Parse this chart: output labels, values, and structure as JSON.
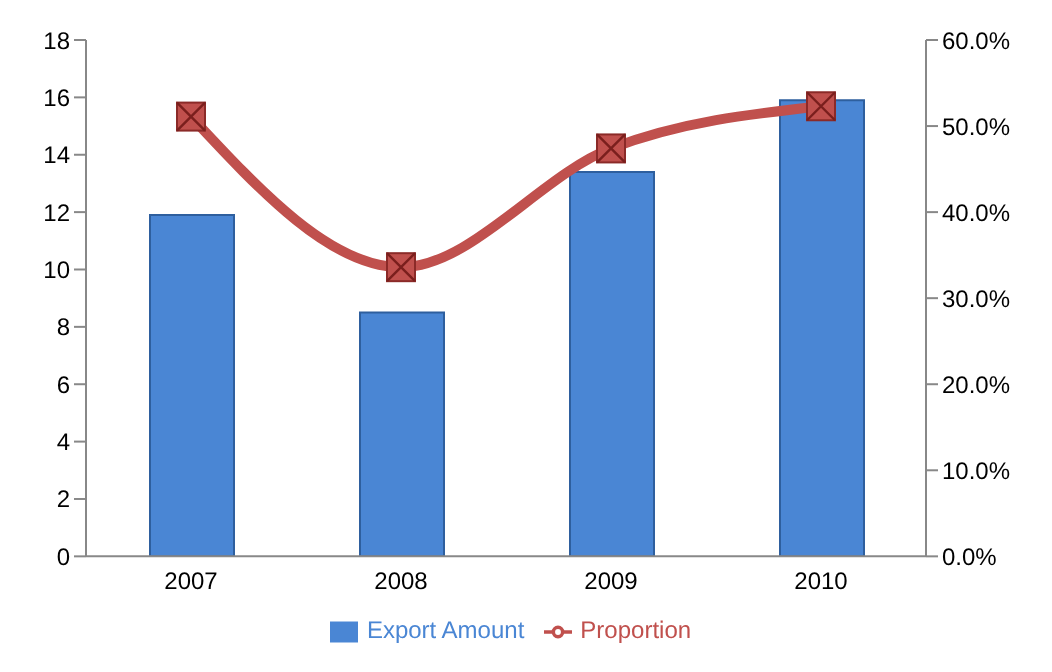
{
  "chart_data": {
    "type": "bar",
    "categories": [
      "2007",
      "2008",
      "2009",
      "2010"
    ],
    "series": [
      {
        "name": "Export Amount",
        "color": "#4a86d4",
        "values": [
          11.9,
          8.5,
          13.4,
          15.9
        ]
      },
      {
        "name": "Proportion",
        "type": "line",
        "axis": "y2",
        "color": "#c0504d",
        "marker": "square",
        "values": [
          51.1,
          33.6,
          47.4,
          52.3
        ]
      }
    ],
    "ylim": [
      0,
      18
    ],
    "yticks": [
      0,
      2,
      4,
      6,
      8,
      10,
      12,
      14,
      16,
      18
    ],
    "y2lim": [
      0,
      60
    ],
    "y2ticks": [
      {
        "value": 0,
        "label": "0.0%"
      },
      {
        "value": 10,
        "label": "10.0%"
      },
      {
        "value": 20,
        "label": "20.0%"
      },
      {
        "value": 30,
        "label": "30.0%"
      },
      {
        "value": 40,
        "label": "40.0%"
      },
      {
        "value": 50,
        "label": "50.0%"
      },
      {
        "value": 60,
        "label": "60.0%"
      }
    ],
    "grid": false,
    "legend": "bottom"
  }
}
